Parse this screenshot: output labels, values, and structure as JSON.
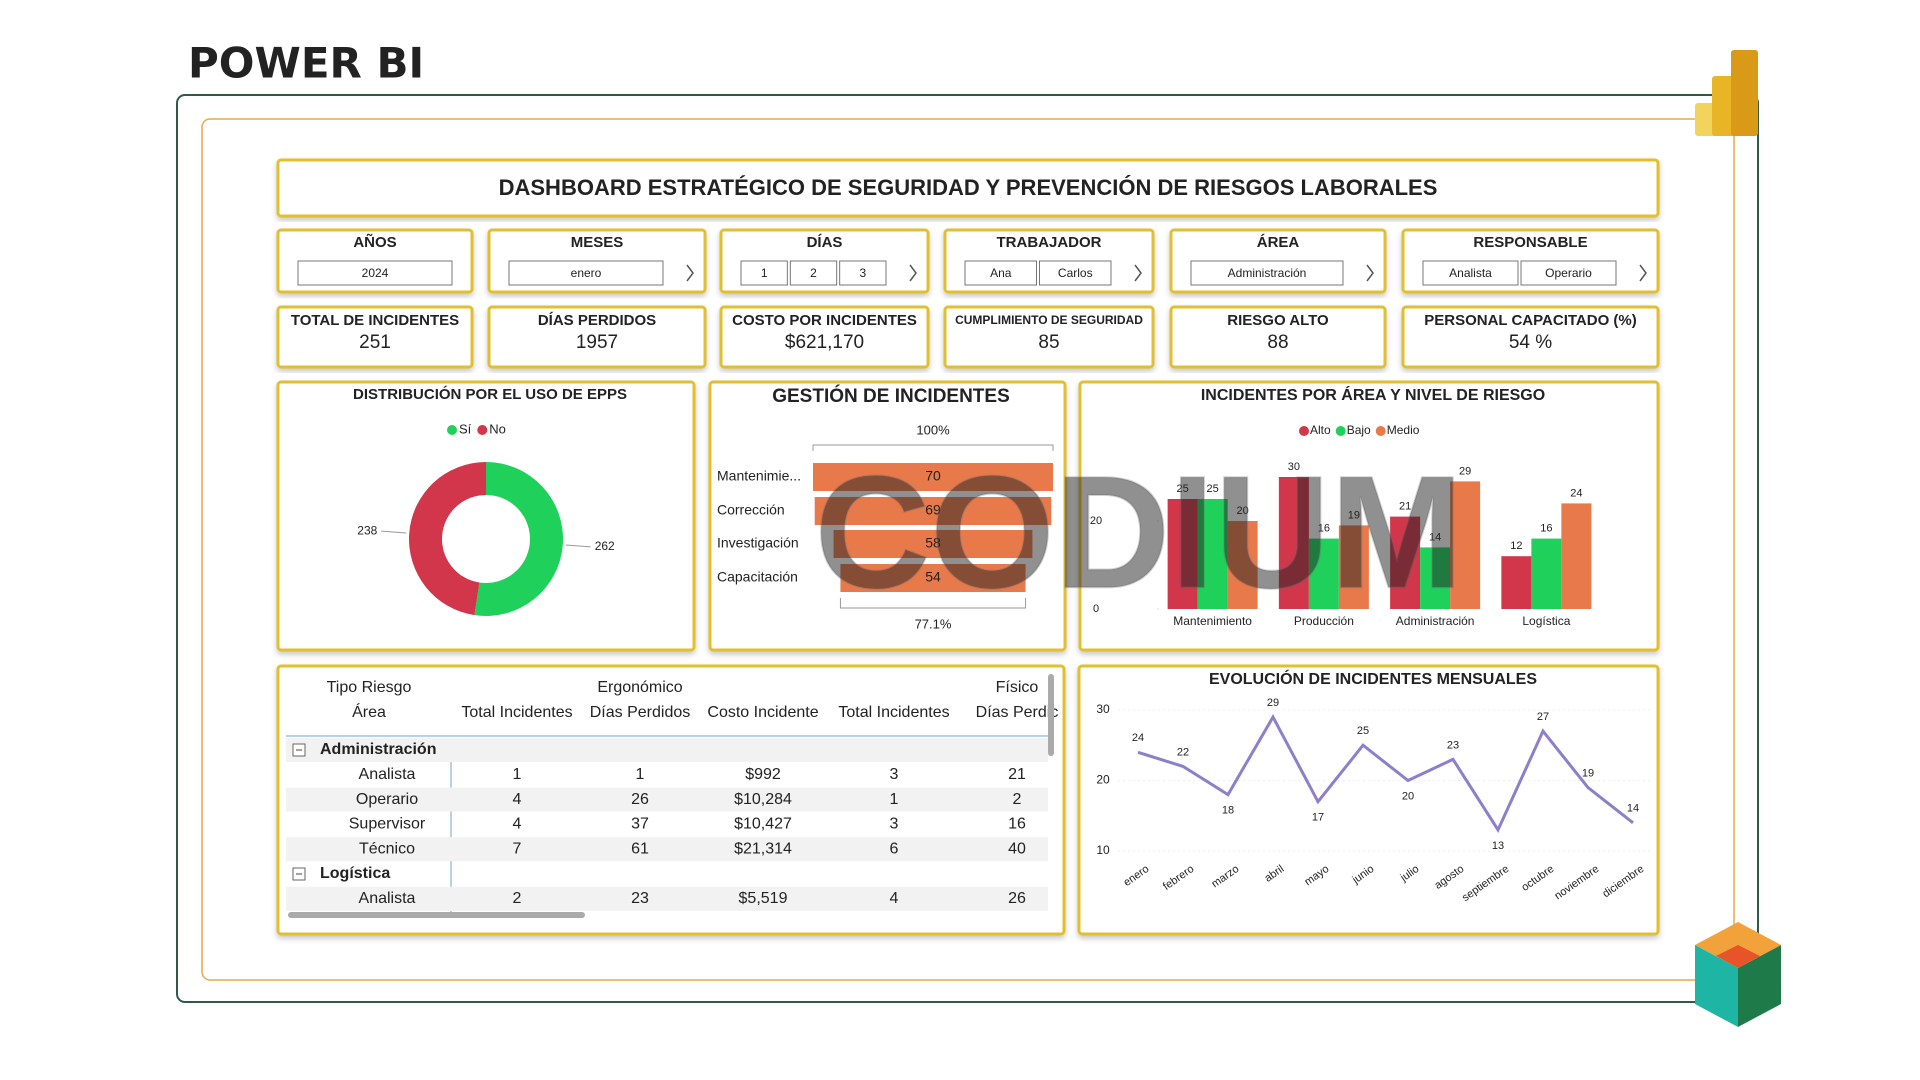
{
  "header": {
    "title": "POWER BI"
  },
  "dashboard_title": "DASHBOARD ESTRATÉGICO DE SEGURIDAD Y PREVENCIÓN DE RIESGOS LABORALES",
  "slicers": [
    {
      "label": "AÑOS",
      "items": [
        "2024"
      ]
    },
    {
      "label": "MESES",
      "items": [
        "enero"
      ]
    },
    {
      "label": "DÍAS",
      "items": [
        "1",
        "2",
        "3"
      ]
    },
    {
      "label": "TRABAJADOR",
      "items": [
        "Ana",
        "Carlos"
      ]
    },
    {
      "label": "ÁREA",
      "items": [
        "Administración"
      ]
    },
    {
      "label": "RESPONSABLE",
      "items": [
        "Analista",
        "Operario"
      ]
    }
  ],
  "kpis": [
    {
      "label": "TOTAL DE INCIDENTES",
      "value": 251
    },
    {
      "label": "DÍAS PERDIDOS",
      "value": 1957
    },
    {
      "label": "COSTO POR INCIDENTES",
      "value": "$621,170"
    },
    {
      "label": "CUMPLIMIENTO DE SEGURIDAD",
      "value": 85
    },
    {
      "label": "RIESGO ALTO",
      "value": 88
    },
    {
      "label": "PERSONAL CAPACITADO (%)",
      "value": "54 %"
    }
  ],
  "chart_data": [
    {
      "type": "donut",
      "title": "DISTRIBUCIÓN POR EL USO DE EPPS",
      "categories": [
        "Sí",
        "No"
      ],
      "values": [
        262,
        238
      ],
      "colors": [
        "#1fd15a",
        "#d1364a"
      ]
    },
    {
      "type": "funnel",
      "title": "GESTIÓN DE INCIDENTES",
      "categories": [
        "Mantenimie...",
        "Corrección",
        "Investigación",
        "Capacitación"
      ],
      "values": [
        70,
        69,
        58,
        54
      ],
      "color": "#e8794b",
      "top_label": "100%",
      "bottom_label": "77.1%"
    },
    {
      "type": "bar",
      "title": "INCIDENTES POR ÁREA Y NIVEL DE RIESGO",
      "categories": [
        "Mantenimiento",
        "Producción",
        "Administración",
        "Logística"
      ],
      "series": [
        {
          "name": "Alto",
          "color": "#d1364a",
          "values": [
            25,
            30,
            21,
            12
          ]
        },
        {
          "name": "Bajo",
          "color": "#1fd15a",
          "values": [
            25,
            16,
            14,
            16
          ]
        },
        {
          "name": "Medio",
          "color": "#e8794b",
          "values": [
            20,
            19,
            29,
            24
          ]
        }
      ],
      "ylim": [
        0,
        35
      ],
      "yticks": [
        0,
        20
      ],
      "legend": "top"
    },
    {
      "type": "line",
      "title": "EVOLUCIÓN DE INCIDENTES MENSUALES",
      "categories": [
        "enero",
        "febrero",
        "marzo",
        "abril",
        "mayo",
        "junio",
        "julio",
        "agosto",
        "septiembre",
        "octubre",
        "noviembre",
        "diciembre"
      ],
      "values": [
        24,
        22,
        18,
        29,
        17,
        25,
        20,
        23,
        13,
        27,
        19,
        14
      ],
      "color": "#8d7fc9",
      "ylim": [
        10,
        30
      ],
      "yticks": [
        10,
        20,
        30
      ],
      "grid": true
    }
  ],
  "table": {
    "header_top": [
      "Tipo Riesgo",
      "Ergonómico",
      "Físico"
    ],
    "header": [
      "Área",
      "Total Incidentes",
      "Días Perdidos",
      "Costo Incidente",
      "Total Incidentes",
      "Días Perdic"
    ],
    "groups": [
      {
        "name": "Administración",
        "rows": [
          [
            "Analista",
            1,
            1,
            "$992",
            3,
            21
          ],
          [
            "Operario",
            4,
            26,
            "$10,284",
            1,
            2
          ],
          [
            "Supervisor",
            4,
            37,
            "$10,427",
            3,
            16
          ],
          [
            "Técnico",
            7,
            61,
            "$21,314",
            6,
            40
          ]
        ]
      },
      {
        "name": "Logística",
        "rows": [
          [
            "Analista",
            2,
            23,
            "$5,519",
            4,
            26
          ]
        ]
      }
    ]
  },
  "watermark": "CODIUM"
}
